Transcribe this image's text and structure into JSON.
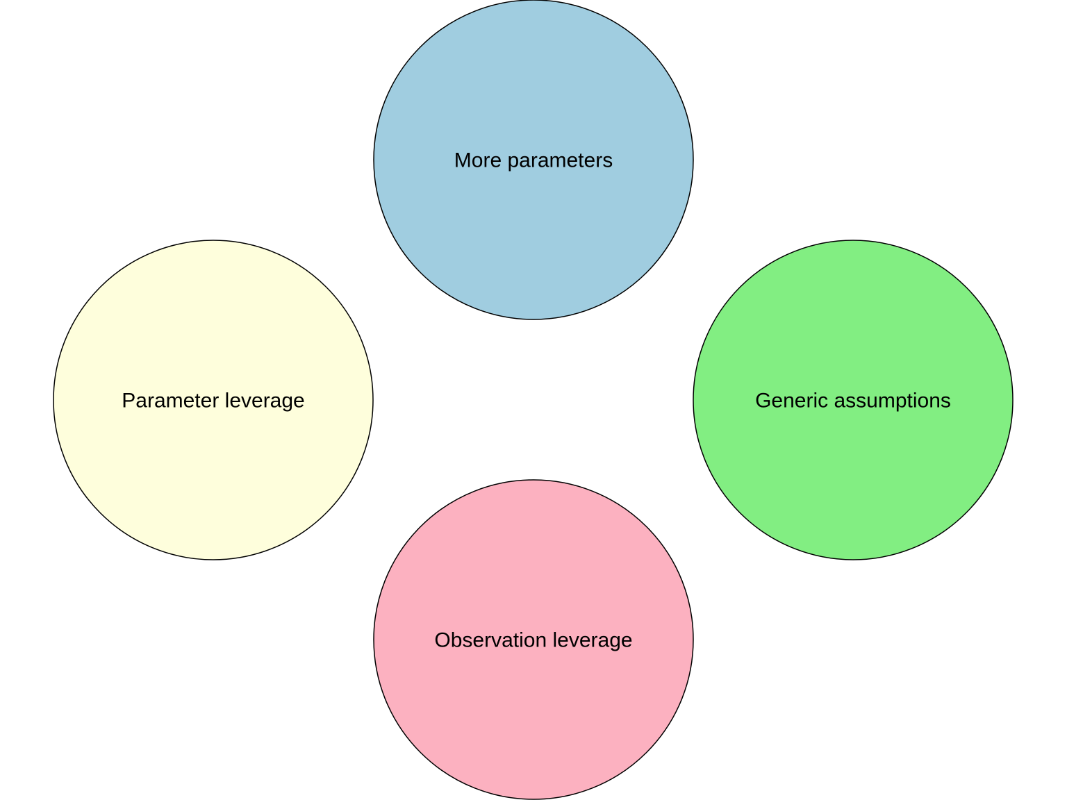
{
  "diagram": {
    "nodes": [
      {
        "id": "more-parameters",
        "label": "More parameters",
        "color": "#a0cde0"
      },
      {
        "id": "generic-assumptions",
        "label": "Generic assumptions",
        "color": "#82ee82"
      },
      {
        "id": "observation-leverage",
        "label": "Observation leverage",
        "color": "#fcb1c0"
      },
      {
        "id": "parameter-leverage",
        "label": "Parameter leverage",
        "color": "#fefedc"
      }
    ]
  }
}
